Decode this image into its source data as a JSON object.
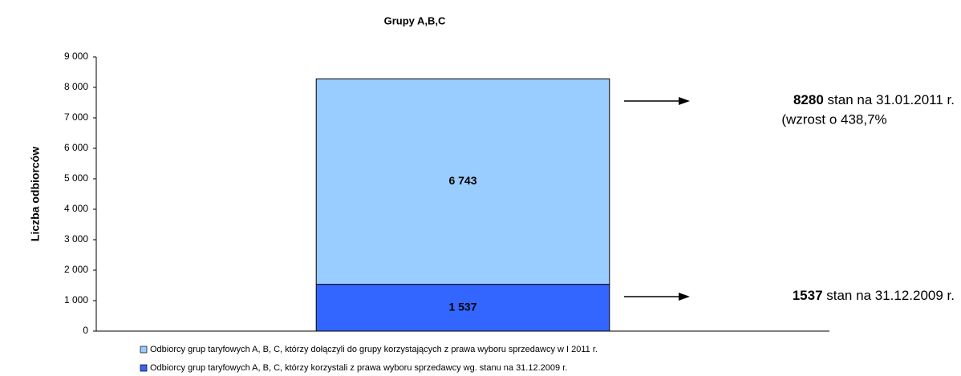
{
  "chart_data": {
    "type": "stacked_bar",
    "title": "Grupy A,B,C",
    "ylabel": "Liczba odbiorców",
    "categories": [
      null
    ],
    "series": [
      {
        "name": "Odbiorcy grup taryfowych A, B, C, którzy korzystali z prawa wyboru sprzedawcy wg. stanu na 31.12.2009 r.",
        "color": "#3366ff",
        "values": [
          1537
        ],
        "value_labels": [
          "1 537"
        ]
      },
      {
        "name": "Odbiorcy grup taryfowych A, B, C, którzy dołączyli do grupy korzystających z prawa wyboru sprzedawcy w I 2011 r.",
        "color": "#99ccff",
        "values": [
          6743
        ],
        "value_labels": [
          "6 743"
        ]
      }
    ],
    "ylim": [
      0,
      9000
    ],
    "yticks": [
      0,
      {
        "value": 1000,
        "label": "1 000"
      },
      {
        "value": 2000,
        "label": "2 000"
      },
      {
        "value": 3000,
        "label": "3 000"
      },
      {
        "value": 4000,
        "label": "4 000"
      },
      {
        "value": 5000,
        "label": "5 000"
      },
      {
        "value": 6000,
        "label": "6 000"
      },
      {
        "value": 7000,
        "label": "7 000"
      },
      {
        "value": 8000,
        "label": "8 000"
      },
      {
        "value": 9000,
        "label": "9 000"
      }
    ],
    "grid": false,
    "annotations": [
      {
        "bold": "8280",
        "text": " stan na 31.01.2011 r."
      },
      {
        "text": "(wzrost o 438,7%"
      },
      {
        "bold": "1537",
        "text": " stan na 31.12.2009 r."
      }
    ]
  }
}
